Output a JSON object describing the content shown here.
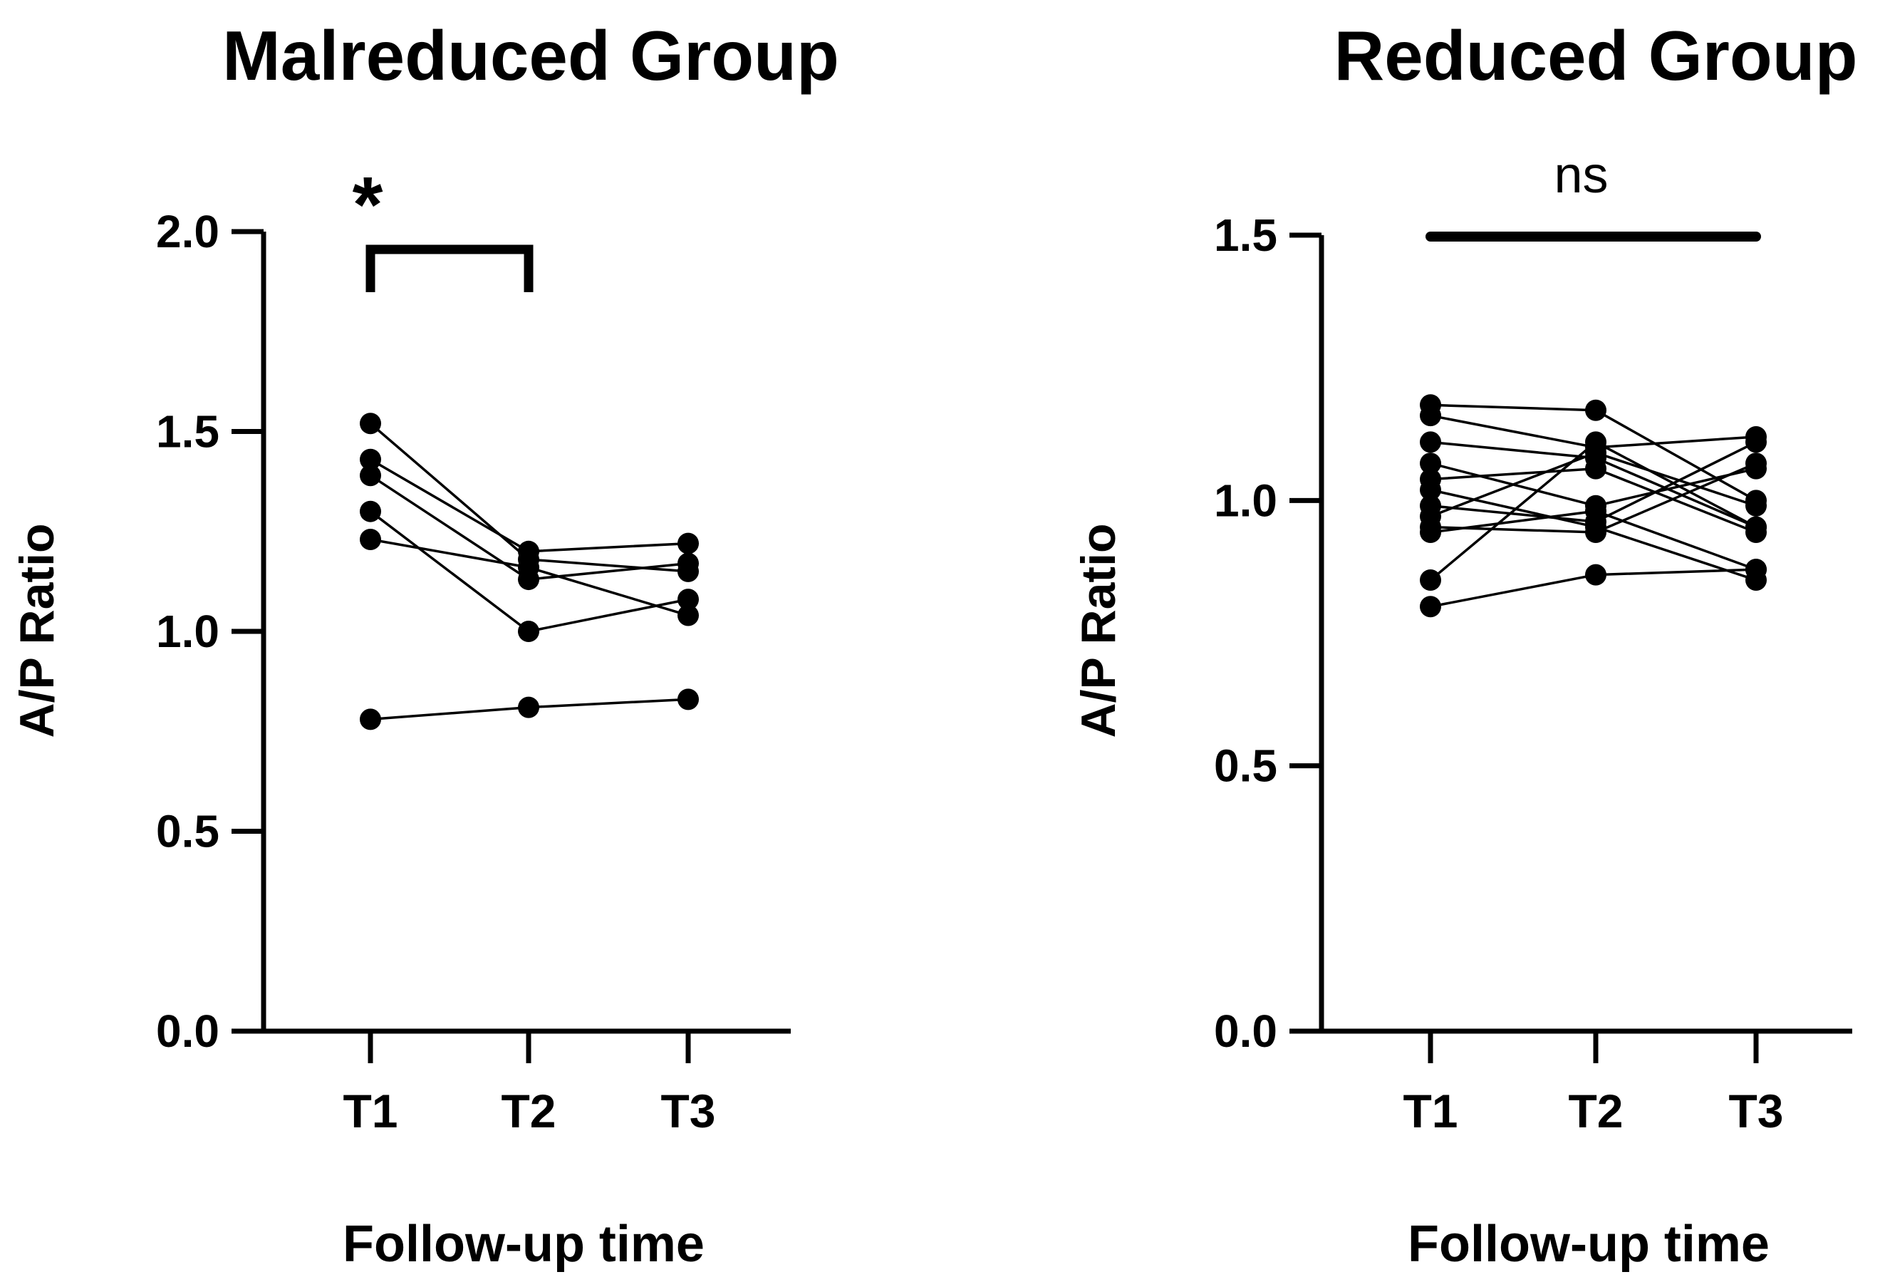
{
  "chart_data": [
    {
      "type": "line",
      "title": "Malreduced Group",
      "xlabel": "Follow-up time",
      "ylabel": "A/P Ratio",
      "categories": [
        "T1",
        "T2",
        "T3"
      ],
      "ylim": [
        0,
        2.0
      ],
      "yticks": [
        "0.0",
        "0.5",
        "1.0",
        "1.5",
        "2.0"
      ],
      "grid": false,
      "annotation": {
        "text": "*",
        "from": "T1",
        "to": "T2",
        "shape": "bracket"
      },
      "series": [
        {
          "values": [
            1.52,
            1.18,
            1.15
          ]
        },
        {
          "values": [
            1.43,
            1.2,
            1.22
          ]
        },
        {
          "values": [
            1.39,
            1.13,
            1.17
          ]
        },
        {
          "values": [
            1.3,
            1.0,
            1.08
          ]
        },
        {
          "values": [
            1.23,
            1.16,
            1.04
          ]
        },
        {
          "values": [
            0.78,
            0.81,
            0.83
          ]
        }
      ]
    },
    {
      "type": "line",
      "title": "Reduced Group",
      "xlabel": "Follow-up time",
      "ylabel": "A/P Ratio",
      "categories": [
        "T1",
        "T2",
        "T3"
      ],
      "ylim": [
        0,
        1.5
      ],
      "yticks": [
        "0.0",
        "0.5",
        "1.0",
        "1.5"
      ],
      "grid": false,
      "annotation": {
        "text": "ns",
        "from": "T1",
        "to": "T3",
        "shape": "line"
      },
      "series": [
        {
          "values": [
            1.18,
            1.17,
            1.0
          ]
        },
        {
          "values": [
            1.16,
            1.1,
            1.12
          ]
        },
        {
          "values": [
            1.11,
            1.08,
            0.95
          ]
        },
        {
          "values": [
            1.07,
            0.99,
            1.06
          ]
        },
        {
          "values": [
            1.04,
            1.06,
            0.94
          ]
        },
        {
          "values": [
            0.99,
            0.96,
            1.11
          ]
        },
        {
          "values": [
            0.97,
            1.09,
            0.99
          ]
        },
        {
          "values": [
            0.95,
            0.94,
            1.07
          ]
        },
        {
          "values": [
            0.94,
            0.98,
            0.87
          ]
        },
        {
          "values": [
            0.85,
            1.11,
            0.95
          ]
        },
        {
          "values": [
            0.8,
            0.86,
            0.87
          ]
        },
        {
          "values": [
            1.02,
            0.95,
            0.85
          ]
        }
      ]
    }
  ]
}
